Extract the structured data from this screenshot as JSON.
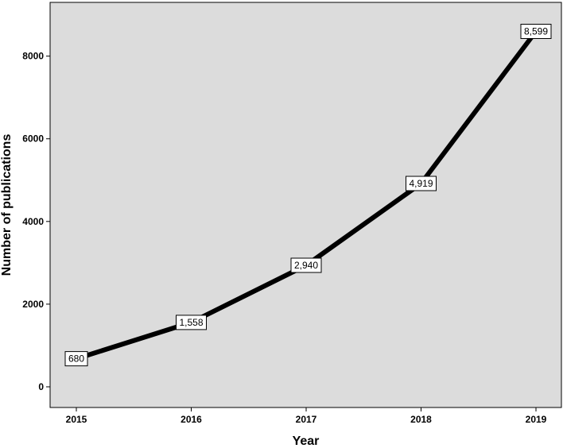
{
  "chart_data": {
    "type": "line",
    "title": "",
    "xlabel": "Year",
    "ylabel": "Number of publications",
    "categories": [
      "2015",
      "2016",
      "2017",
      "2018",
      "2019"
    ],
    "series": [
      {
        "values": [
          680,
          1558,
          2940,
          4919,
          8599
        ]
      }
    ],
    "data_labels": [
      "680",
      "1,558",
      "2,940",
      "4,919",
      "8,599"
    ],
    "y_ticks": [
      0,
      2000,
      4000,
      6000,
      8000
    ],
    "ylim": [
      -500,
      9300
    ],
    "grid": false,
    "legend": "none",
    "colors": {
      "plot_background": "#dcdcdc",
      "line": "#000000",
      "label_box": "#ffffff"
    }
  }
}
